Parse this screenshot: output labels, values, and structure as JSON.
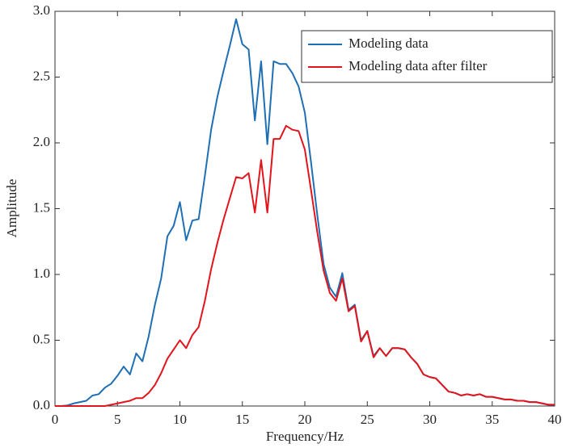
{
  "chart_data": {
    "type": "line",
    "xlabel": "Frequency/Hz",
    "ylabel": "Amplitude",
    "x": [
      0,
      0.5,
      1,
      1.5,
      2,
      2.5,
      3,
      3.5,
      4,
      4.5,
      5,
      5.5,
      6,
      6.5,
      7,
      7.5,
      8,
      8.5,
      9,
      9.5,
      10,
      10.5,
      11,
      11.5,
      12,
      12.5,
      13,
      13.5,
      14,
      14.5,
      15,
      15.5,
      16,
      16.5,
      17,
      17.5,
      18,
      18.5,
      19,
      19.5,
      20,
      20.5,
      21,
      21.5,
      22,
      22.5,
      23,
      23.5,
      24,
      24.5,
      25,
      25.5,
      26,
      26.5,
      27,
      27.5,
      28,
      28.5,
      29,
      29.5,
      30,
      30.5,
      31,
      31.5,
      32,
      32.5,
      33,
      33.5,
      34,
      34.5,
      35,
      35.5,
      36,
      36.5,
      37,
      37.5,
      38,
      38.5,
      39,
      39.5,
      40
    ],
    "series": [
      {
        "name": "Modeling data",
        "color": "#1f6fb4",
        "values": [
          0,
          0,
          0.005,
          0.02,
          0.03,
          0.04,
          0.08,
          0.09,
          0.14,
          0.17,
          0.23,
          0.3,
          0.24,
          0.4,
          0.34,
          0.53,
          0.77,
          0.97,
          1.29,
          1.37,
          1.55,
          1.26,
          1.41,
          1.42,
          1.75,
          2.1,
          2.35,
          2.55,
          2.74,
          2.94,
          2.75,
          2.71,
          2.17,
          2.62,
          1.99,
          2.62,
          2.6,
          2.6,
          2.53,
          2.43,
          2.23,
          1.85,
          1.45,
          1.08,
          0.9,
          0.83,
          1.01,
          0.73,
          0.77,
          0.5,
          0.57,
          0.38,
          0.44,
          0.38,
          0.44,
          0.44,
          0.43,
          0.37,
          0.32,
          0.24,
          0.22,
          0.21,
          0.16,
          0.11,
          0.1,
          0.08,
          0.09,
          0.08,
          0.09,
          0.07,
          0.07,
          0.06,
          0.05,
          0.05,
          0.04,
          0.04,
          0.03,
          0.03,
          0.02,
          0.01,
          0.01
        ]
      },
      {
        "name": "Modeling data after filter",
        "color": "#e3141b",
        "values": [
          0,
          0,
          0,
          0,
          0,
          0,
          0,
          0,
          0,
          0.01,
          0.02,
          0.03,
          0.04,
          0.06,
          0.06,
          0.1,
          0.16,
          0.25,
          0.36,
          0.43,
          0.5,
          0.44,
          0.54,
          0.6,
          0.8,
          1.04,
          1.24,
          1.42,
          1.58,
          1.74,
          1.73,
          1.77,
          1.47,
          1.87,
          1.47,
          2.03,
          2.03,
          2.13,
          2.1,
          2.09,
          1.95,
          1.64,
          1.32,
          1.03,
          0.86,
          0.8,
          0.97,
          0.72,
          0.76,
          0.49,
          0.57,
          0.37,
          0.44,
          0.38,
          0.44,
          0.44,
          0.43,
          0.37,
          0.32,
          0.24,
          0.22,
          0.21,
          0.16,
          0.11,
          0.1,
          0.08,
          0.09,
          0.08,
          0.09,
          0.07,
          0.07,
          0.06,
          0.05,
          0.05,
          0.04,
          0.04,
          0.03,
          0.03,
          0.02,
          0.01,
          0.01
        ]
      }
    ],
    "xlim": [
      0,
      40
    ],
    "xticks": [
      0,
      5,
      10,
      15,
      20,
      25,
      30,
      35,
      40
    ],
    "ylim": [
      0,
      3
    ],
    "yticks": [
      {
        "value": 0,
        "label": "0.0"
      },
      0.5,
      {
        "value": 1,
        "label": "1.0"
      },
      1.5,
      {
        "value": 2,
        "label": "2.0"
      },
      2.5,
      {
        "value": 3,
        "label": "3.0"
      }
    ],
    "legend": "upper right"
  }
}
